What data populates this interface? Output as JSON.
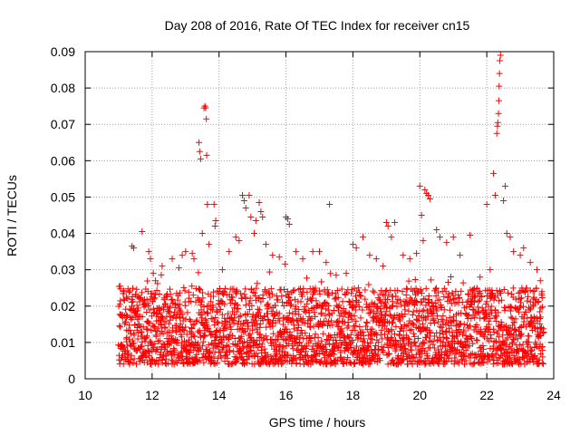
{
  "chart_data": {
    "type": "scatter",
    "title": "Day 208 of 2016, Rate Of TEC Index for receiver cn15",
    "xlabel": "GPS time / hours",
    "ylabel": "ROTI / TECUs",
    "xlim": [
      10,
      24
    ],
    "ylim": [
      0,
      0.09
    ],
    "x_ticks": [
      10,
      12,
      14,
      16,
      18,
      20,
      22,
      24
    ],
    "y_ticks": [
      0,
      0.01,
      0.02,
      0.03,
      0.04,
      0.05,
      0.06,
      0.07,
      0.08,
      0.09
    ],
    "x_tick_labels": [
      "10",
      "12",
      "14",
      "16",
      "18",
      "20",
      "22",
      "24"
    ],
    "y_tick_labels": [
      "0",
      "0.01",
      "0.02",
      "0.03",
      "0.04",
      "0.05",
      "0.06",
      "0.07",
      "0.08",
      "0.09"
    ],
    "grid": true,
    "marker": "+",
    "color": "#ff0000",
    "series": [
      {
        "name": "ROTI",
        "points": [
          [
            11.05,
            0.0255
          ],
          [
            11.4,
            0.0365
          ],
          [
            11.45,
            0.036
          ],
          [
            11.7,
            0.0405
          ],
          [
            11.9,
            0.035
          ],
          [
            11.95,
            0.033
          ],
          [
            12.1,
            0.027
          ],
          [
            12.3,
            0.031
          ],
          [
            12.6,
            0.033
          ],
          [
            12.8,
            0.0305
          ],
          [
            12.9,
            0.034
          ],
          [
            13.0,
            0.035
          ],
          [
            13.2,
            0.0345
          ],
          [
            13.25,
            0.033
          ],
          [
            13.4,
            0.065
          ],
          [
            13.42,
            0.0625
          ],
          [
            13.45,
            0.0605
          ],
          [
            13.5,
            0.04
          ],
          [
            13.55,
            0.0745
          ],
          [
            13.58,
            0.075
          ],
          [
            13.6,
            0.0745
          ],
          [
            13.62,
            0.0715
          ],
          [
            13.63,
            0.0615
          ],
          [
            13.65,
            0.048
          ],
          [
            13.7,
            0.037
          ],
          [
            13.85,
            0.048
          ],
          [
            13.9,
            0.0435
          ],
          [
            13.88,
            0.042
          ],
          [
            14.1,
            0.03
          ],
          [
            14.3,
            0.035
          ],
          [
            14.5,
            0.039
          ],
          [
            14.6,
            0.038
          ],
          [
            14.7,
            0.0505
          ],
          [
            14.75,
            0.049
          ],
          [
            14.8,
            0.047
          ],
          [
            14.9,
            0.0505
          ],
          [
            14.95,
            0.0445
          ],
          [
            15.05,
            0.04
          ],
          [
            15.1,
            0.0435
          ],
          [
            15.2,
            0.0485
          ],
          [
            15.25,
            0.046
          ],
          [
            15.3,
            0.0445
          ],
          [
            15.4,
            0.037
          ],
          [
            15.6,
            0.034
          ],
          [
            15.8,
            0.0335
          ],
          [
            16.0,
            0.0445
          ],
          [
            16.05,
            0.044
          ],
          [
            16.1,
            0.0425
          ],
          [
            16.3,
            0.035
          ],
          [
            16.5,
            0.033
          ],
          [
            16.8,
            0.035
          ],
          [
            17.0,
            0.035
          ],
          [
            17.2,
            0.032
          ],
          [
            17.3,
            0.048
          ],
          [
            17.5,
            0.0285
          ],
          [
            17.8,
            0.029
          ],
          [
            18.0,
            0.037
          ],
          [
            18.1,
            0.036
          ],
          [
            18.3,
            0.039
          ],
          [
            18.5,
            0.034
          ],
          [
            18.7,
            0.033
          ],
          [
            18.9,
            0.031
          ],
          [
            19.0,
            0.043
          ],
          [
            19.05,
            0.042
          ],
          [
            19.15,
            0.039
          ],
          [
            19.25,
            0.043
          ],
          [
            19.5,
            0.034
          ],
          [
            19.7,
            0.033
          ],
          [
            19.9,
            0.0345
          ],
          [
            20.0,
            0.053
          ],
          [
            20.05,
            0.045
          ],
          [
            20.1,
            0.038
          ],
          [
            20.15,
            0.052
          ],
          [
            20.2,
            0.051
          ],
          [
            20.25,
            0.0505
          ],
          [
            20.3,
            0.0495
          ],
          [
            20.5,
            0.041
          ],
          [
            20.6,
            0.039
          ],
          [
            20.8,
            0.0375
          ],
          [
            21.0,
            0.039
          ],
          [
            21.2,
            0.034
          ],
          [
            21.5,
            0.0395
          ],
          [
            21.8,
            0.028
          ],
          [
            22.0,
            0.048
          ],
          [
            22.1,
            0.03
          ],
          [
            22.2,
            0.0565
          ],
          [
            22.25,
            0.0505
          ],
          [
            22.3,
            0.0675
          ],
          [
            22.32,
            0.0695
          ],
          [
            22.33,
            0.0705
          ],
          [
            22.35,
            0.073
          ],
          [
            22.36,
            0.0765
          ],
          [
            22.37,
            0.0805
          ],
          [
            22.38,
            0.084
          ],
          [
            22.39,
            0.0875
          ],
          [
            22.41,
            0.089
          ],
          [
            22.5,
            0.049
          ],
          [
            22.55,
            0.053
          ],
          [
            22.6,
            0.04
          ],
          [
            22.7,
            0.039
          ],
          [
            22.8,
            0.035
          ],
          [
            23.0,
            0.034
          ],
          [
            23.1,
            0.036
          ],
          [
            23.3,
            0.032
          ],
          [
            23.5,
            0.03
          ],
          [
            23.6,
            0.027
          ],
          [
            23.65,
            0.024
          ]
        ],
        "dense_band": {
          "x_range": [
            11.0,
            23.7
          ],
          "typical_y_range": [
            0.004,
            0.025
          ],
          "description": "many more ROTI samples"
        }
      }
    ]
  }
}
